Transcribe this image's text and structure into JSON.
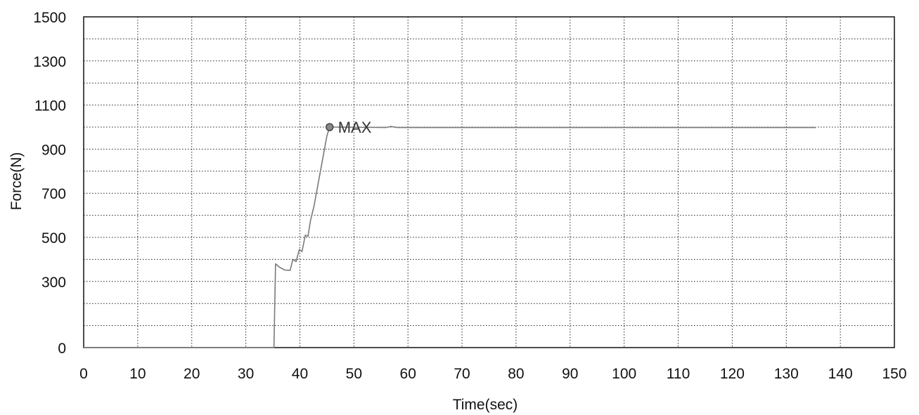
{
  "chart_data": {
    "type": "line",
    "title": "",
    "xlabel": "Time(sec)",
    "ylabel": "Force(N)",
    "xlim": [
      0,
      150
    ],
    "ylim": [
      0,
      1500
    ],
    "xticks": [
      0,
      10,
      20,
      30,
      40,
      50,
      60,
      70,
      80,
      90,
      100,
      110,
      120,
      130,
      140,
      150
    ],
    "xtick_labels": [
      "0",
      "10",
      "20",
      "30",
      "40",
      "50",
      "60",
      "70",
      "80",
      "90",
      "100",
      "110",
      "120",
      "130",
      "140",
      "150"
    ],
    "yticks": [
      0,
      300,
      500,
      700,
      900,
      1100,
      1300,
      1500
    ],
    "ytick_labels": [
      "0",
      "300",
      "500",
      "700",
      "900",
      "1100",
      "1300",
      "1500"
    ],
    "grid": true,
    "x_grid_step": 10,
    "y_grid_step": 100,
    "series": [
      {
        "color": "#7a7a7a",
        "points": [
          [
            0,
            0
          ],
          [
            34.5,
            0
          ],
          [
            35.2,
            0
          ],
          [
            35.5,
            380
          ],
          [
            36.2,
            365
          ],
          [
            37.2,
            352
          ],
          [
            38.2,
            350
          ],
          [
            38.7,
            400
          ],
          [
            39.3,
            390
          ],
          [
            39.9,
            445
          ],
          [
            40.4,
            435
          ],
          [
            41.0,
            510
          ],
          [
            41.5,
            505
          ],
          [
            42.0,
            580
          ],
          [
            42.6,
            640
          ],
          [
            43.2,
            720
          ],
          [
            43.8,
            800
          ],
          [
            44.4,
            880
          ],
          [
            45.0,
            960
          ],
          [
            45.5,
            1000
          ],
          [
            46.5,
            1000
          ],
          [
            56.0,
            998
          ],
          [
            56.8,
            1003
          ],
          [
            58.0,
            998
          ],
          [
            80.0,
            998
          ],
          [
            135.5,
            998
          ]
        ]
      }
    ],
    "annotations": [
      {
        "text": "MAX",
        "x": 45.5,
        "y": 1000
      }
    ]
  }
}
